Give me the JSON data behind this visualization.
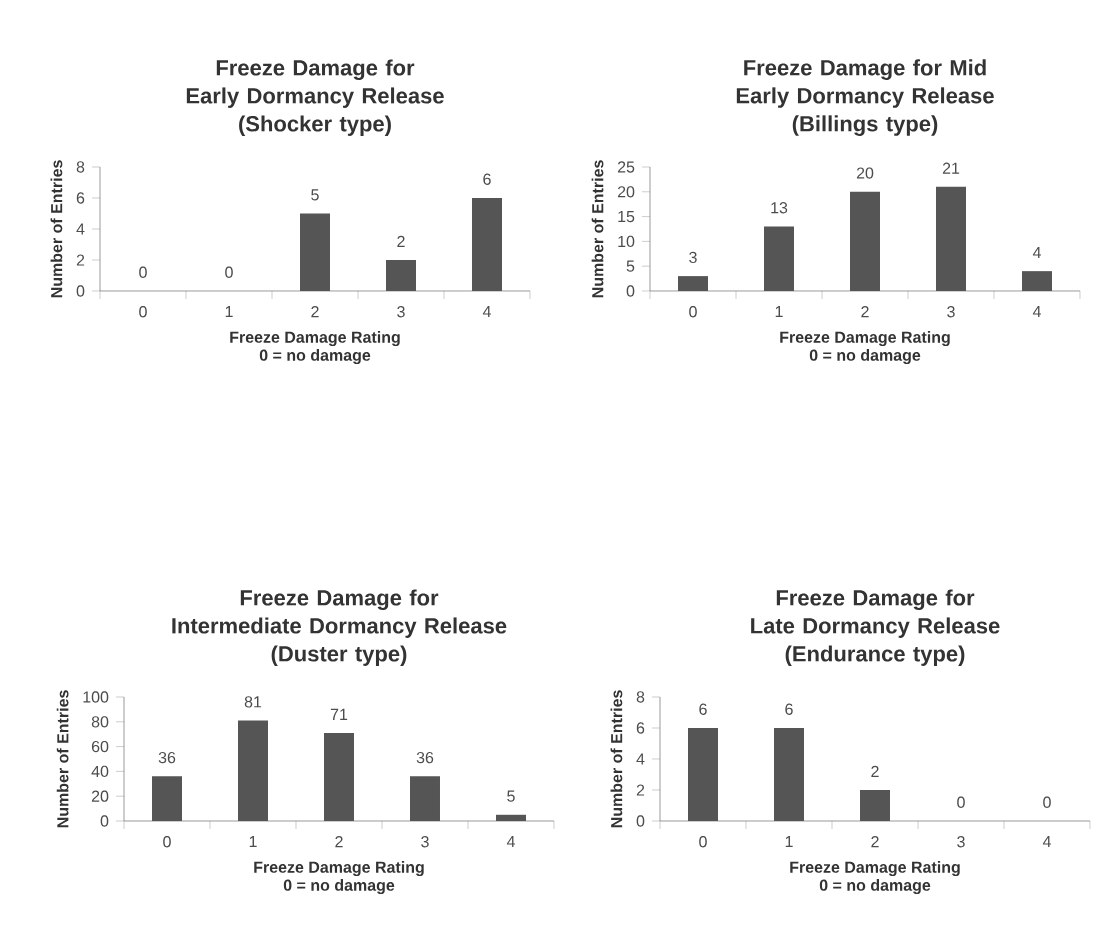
{
  "chart_data": [
    {
      "type": "bar",
      "title": "Freeze Damage for Early Dormancy Release",
      "subtitle": "(Shocker type)",
      "xlabel": "Freeze Damage Rating",
      "ylabel": "Number of Entries",
      "annotations": [
        "0 = no damage"
      ],
      "categories": [
        "0",
        "1",
        "2",
        "3",
        "4"
      ],
      "values": [
        0,
        0,
        5,
        2,
        6
      ],
      "color": "#555555",
      "ylim": [
        0,
        8
      ],
      "yticks": [
        0,
        2,
        4,
        6,
        8
      ],
      "data_labels": true
    },
    {
      "type": "bar",
      "title": "Freeze Damage for Mid Early Dormancy Release",
      "subtitle": "(Billings type)",
      "xlabel": "Freeze Damage Rating",
      "ylabel": "Number of Entries",
      "annotations": [
        "0 = no damage"
      ],
      "categories": [
        "0",
        "1",
        "2",
        "3",
        "4"
      ],
      "values": [
        3,
        13,
        20,
        21,
        4
      ],
      "color": "#555555",
      "ylim": [
        0,
        25
      ],
      "yticks": [
        0,
        5,
        10,
        15,
        20,
        25
      ],
      "data_labels": true
    },
    {
      "type": "bar",
      "title": "Freeze Damage for Intermediate Dormancy Release",
      "subtitle": "(Duster type)",
      "xlabel": "Freeze Damage Rating",
      "ylabel": "Number of Entries",
      "annotations": [
        "0 = no damage"
      ],
      "categories": [
        "0",
        "1",
        "2",
        "3",
        "4"
      ],
      "values": [
        36,
        81,
        71,
        36,
        5
      ],
      "color": "#555555",
      "ylim": [
        0,
        100
      ],
      "yticks": [
        0,
        20,
        40,
        60,
        80,
        100
      ],
      "data_labels": true
    },
    {
      "type": "bar",
      "title": "Freeze Damage for Late Dormancy Release",
      "subtitle": "(Endurance type)",
      "xlabel": "Freeze Damage Rating",
      "ylabel": "Number of Entries",
      "annotations": [
        "0 = no damage"
      ],
      "categories": [
        "0",
        "1",
        "2",
        "3",
        "4"
      ],
      "values": [
        6,
        6,
        2,
        0,
        0
      ],
      "color": "#555555",
      "ylim": [
        0,
        8
      ],
      "yticks": [
        0,
        2,
        4,
        6,
        8
      ],
      "data_labels": true
    }
  ]
}
